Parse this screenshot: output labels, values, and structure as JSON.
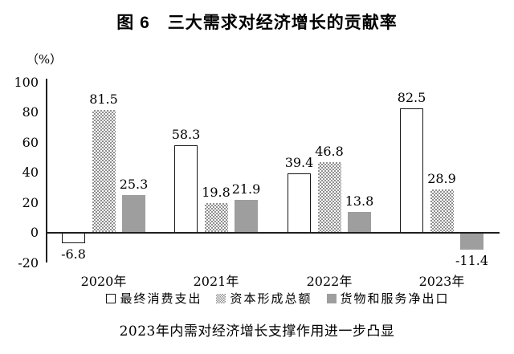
{
  "title": "图 6　三大需求对经济增长的贡献率",
  "caption": "2023年内需对经济增长支撑作用进一步凸显",
  "y_axis_unit": "（%）",
  "colors": {
    "gray_bar": "#9e9e9e",
    "checker_dot": "#8f8f8f",
    "axis_line": "#1f1f1f",
    "text": "#000000",
    "background": "#ffffff"
  },
  "chart_data": {
    "type": "bar",
    "categories": [
      "2020年",
      "2021年",
      "2022年",
      "2023年"
    ],
    "series": [
      {
        "name": "最终消费支出",
        "style": "white-outline",
        "values": [
          -6.8,
          58.3,
          39.4,
          82.5
        ]
      },
      {
        "name": "资本形成总额",
        "style": "checker",
        "values": [
          81.5,
          19.8,
          46.8,
          28.9
        ]
      },
      {
        "name": "货物和服务净出口",
        "style": "solid-gray",
        "values": [
          25.3,
          21.9,
          13.8,
          -11.4
        ]
      }
    ],
    "title": "图 6　三大需求对经济增长的贡献率",
    "xlabel": "",
    "ylabel": "（%）",
    "ylim": [
      -20,
      100
    ],
    "yticks": [
      100,
      80,
      60,
      40,
      20,
      0,
      -20
    ],
    "grid": false,
    "legend_position": "bottom",
    "value_labels": true
  }
}
